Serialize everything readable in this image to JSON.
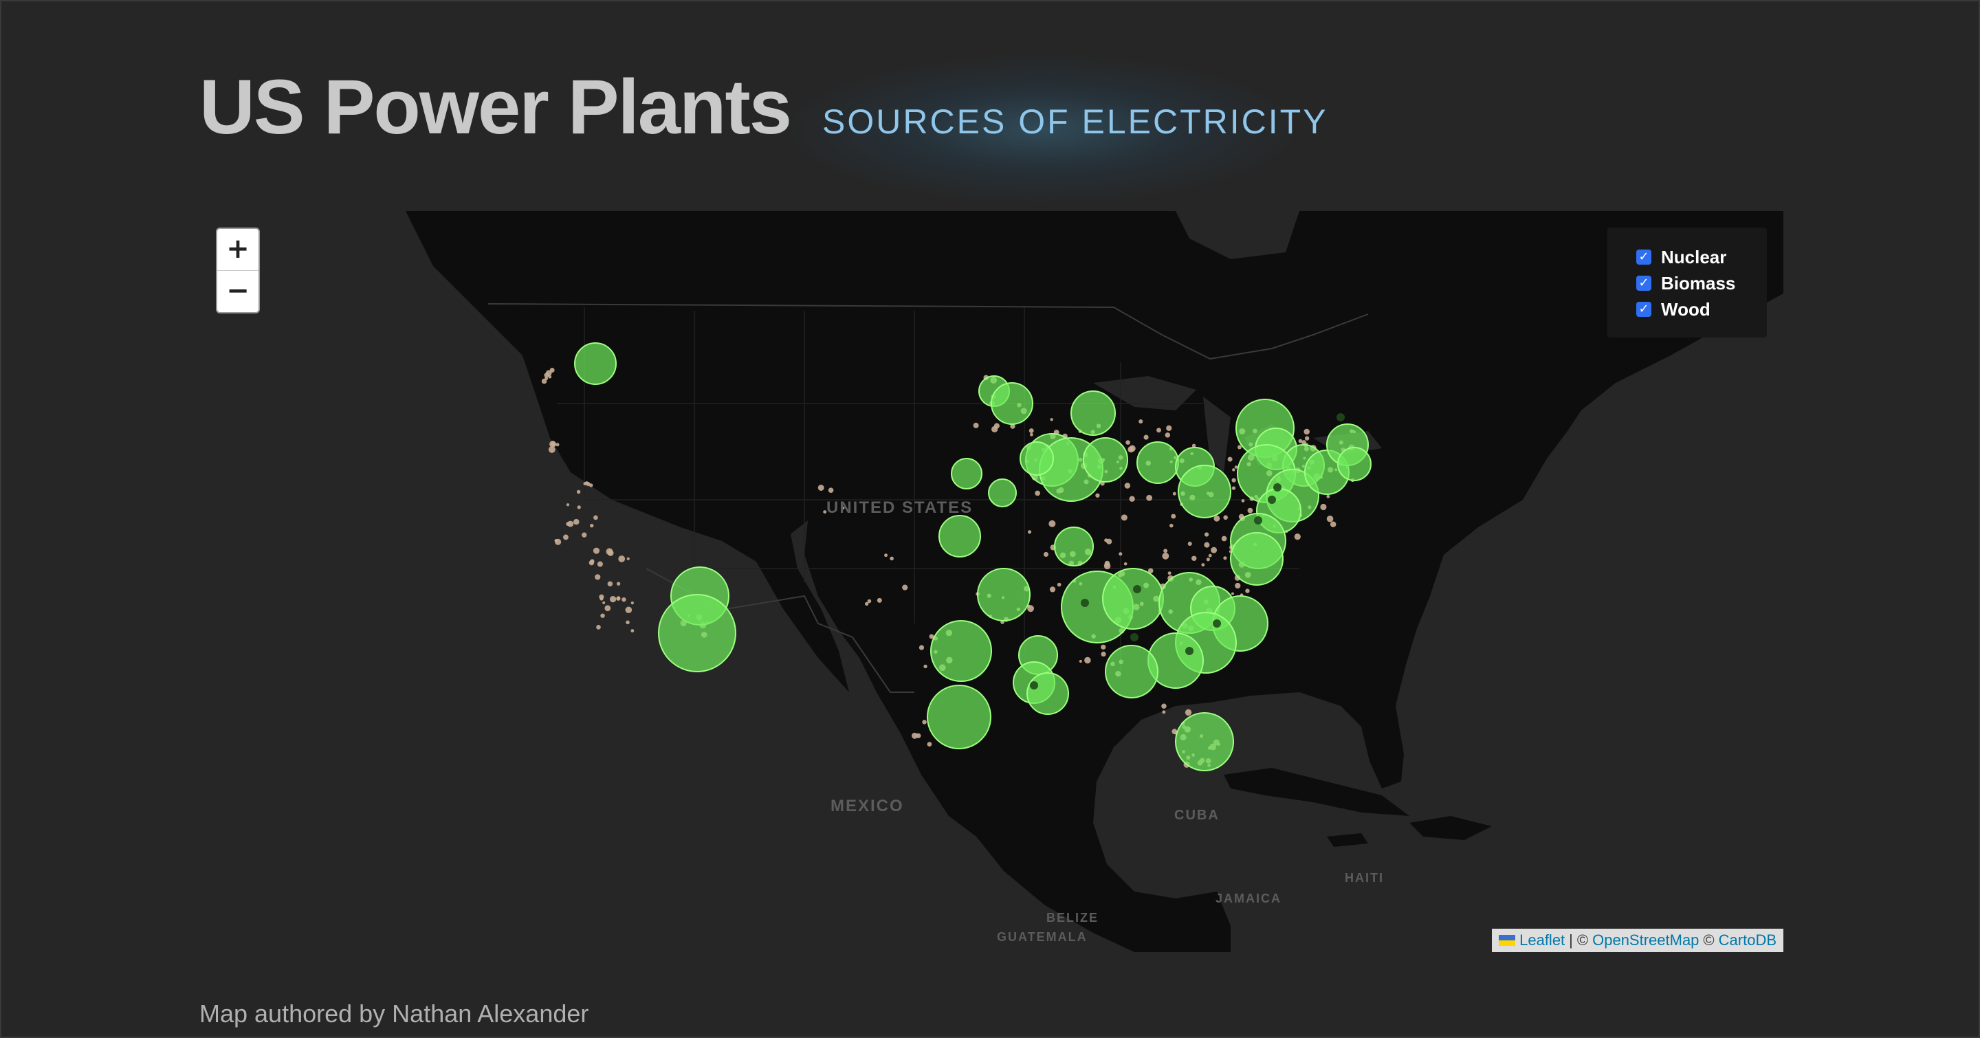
{
  "header": {
    "title": "US Power Plants",
    "subtitle": "SOURCES OF ELECTRICITY"
  },
  "map": {
    "zoom_in_label": "+",
    "zoom_out_label": "−",
    "labels": {
      "united_states": "UNITED STATES",
      "mexico": "MEXICO",
      "cuba": "CUBA",
      "haiti": "HAITI",
      "jamaica": "JAMAICA",
      "belize": "BELIZE",
      "guatemala": "GUATEMALA"
    },
    "layers": [
      {
        "label": "Nuclear",
        "checked": true
      },
      {
        "label": "Biomass",
        "checked": true
      },
      {
        "label": "Wood",
        "checked": true
      }
    ],
    "attribution": {
      "leaflet": "Leaflet",
      "separator": "|",
      "copy1": "©",
      "osm": "OpenStreetMap",
      "copy2": "©",
      "carto": "CartoDB"
    },
    "colors": {
      "nuclear_fill": "#6ee85a",
      "nuclear_stroke": "#9dff80",
      "biomass_fill": "#c9ad96",
      "land": "#0e0e0e",
      "water": "#262626"
    }
  },
  "footer": {
    "text": "Map authored by Nathan Alexander"
  }
}
